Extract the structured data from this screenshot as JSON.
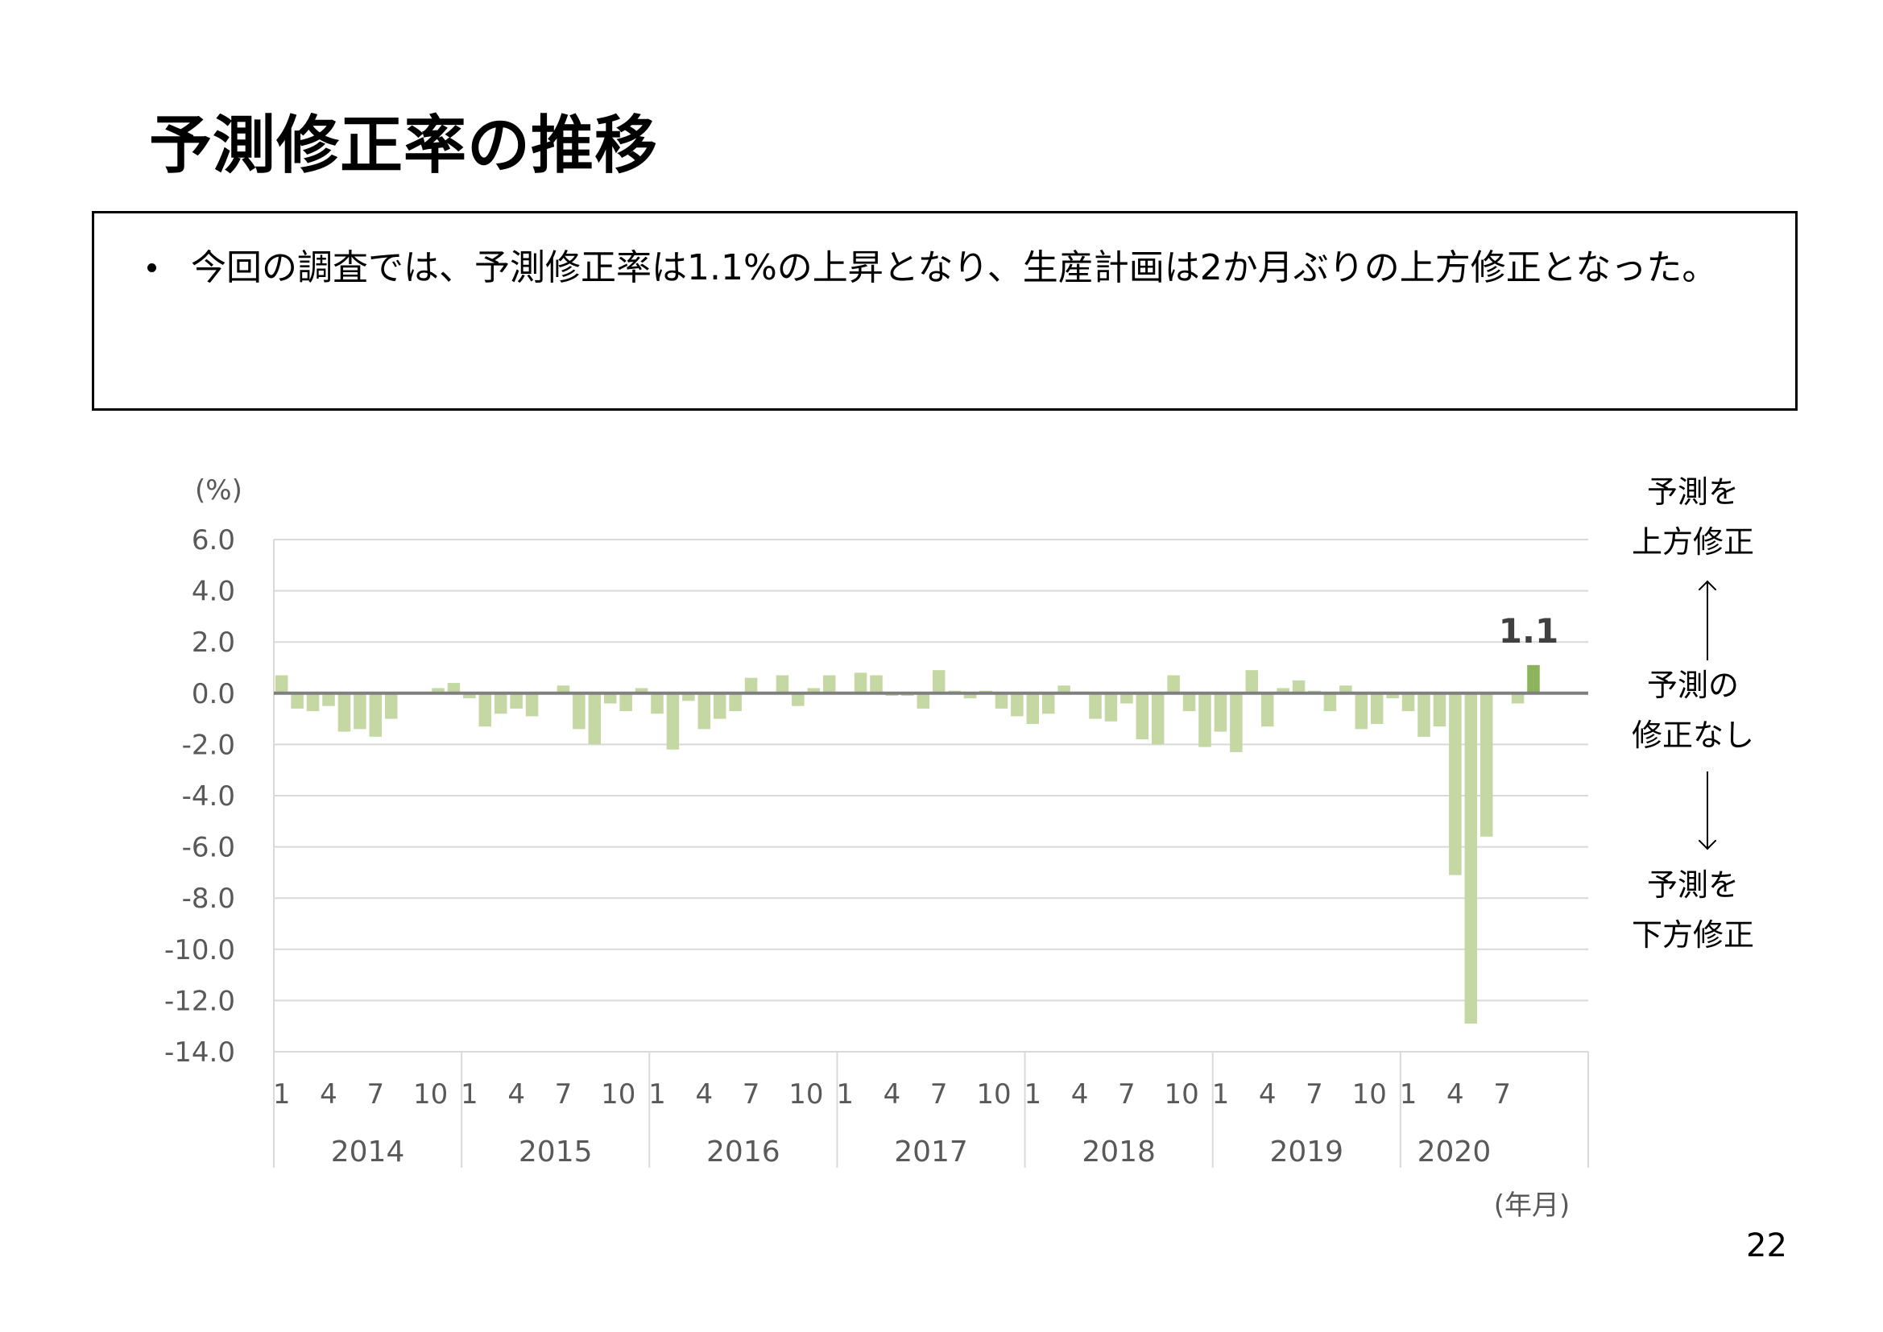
{
  "title": "予測修正率の推移",
  "summary": {
    "bullet_text": "今回の調査では、予測修正率は1.1%の上昇となり、生産計画は2か月ぶりの上方修正となった。"
  },
  "side_labels": {
    "up": "予測を\n上方修正",
    "none": "予測の\n修正なし",
    "down": "予測を\n下方修正"
  },
  "page_number": "22",
  "colors": {
    "bar": "#c5d8a4",
    "highlight_bar": "#8db45c",
    "zero_line": "#7f7f7f",
    "grid": "#d9d9d9"
  },
  "chart_data": {
    "type": "bar",
    "yunit": "(%)",
    "xunit": "(年月)",
    "ylim": [
      -14,
      6
    ],
    "yticks": [
      "6.0",
      "4.0",
      "2.0",
      "0.0",
      "-2.0",
      "-4.0",
      "-6.0",
      "-8.0",
      "-10.0",
      "-12.0",
      "-14.0"
    ],
    "years": [
      "2014",
      "2015",
      "2016",
      "2017",
      "2018",
      "2019",
      "2020"
    ],
    "month_tick_labels": [
      "1",
      "4",
      "7",
      "10"
    ],
    "values": [
      0.7,
      -0.6,
      -0.7,
      -0.5,
      -1.5,
      -1.4,
      -1.7,
      -1.0,
      0.0,
      0.0,
      0.2,
      0.4,
      -0.2,
      -1.3,
      -0.8,
      -0.6,
      -0.9,
      0.0,
      0.3,
      -1.4,
      -2.0,
      -0.4,
      -0.7,
      0.2,
      -0.8,
      -2.2,
      -0.3,
      -1.4,
      -1.0,
      -0.7,
      0.6,
      0.0,
      0.7,
      -0.5,
      0.2,
      0.7,
      0.0,
      0.8,
      0.7,
      -0.1,
      -0.1,
      -0.6,
      0.9,
      0.1,
      -0.2,
      0.1,
      -0.6,
      -0.9,
      -1.2,
      -0.8,
      0.3,
      0.0,
      -1.0,
      -1.1,
      -0.4,
      -1.8,
      -2.0,
      0.7,
      -0.7,
      -2.1,
      -1.5,
      -2.3,
      0.9,
      -1.3,
      0.2,
      0.5,
      0.1,
      -0.7,
      0.3,
      -1.4,
      -1.2,
      -0.2,
      -0.7,
      -1.7,
      -1.3,
      -7.1,
      -12.9,
      -5.6,
      0.0,
      -0.4,
      1.1
    ],
    "highlight": {
      "value": 1.1,
      "label": "1.1"
    }
  }
}
